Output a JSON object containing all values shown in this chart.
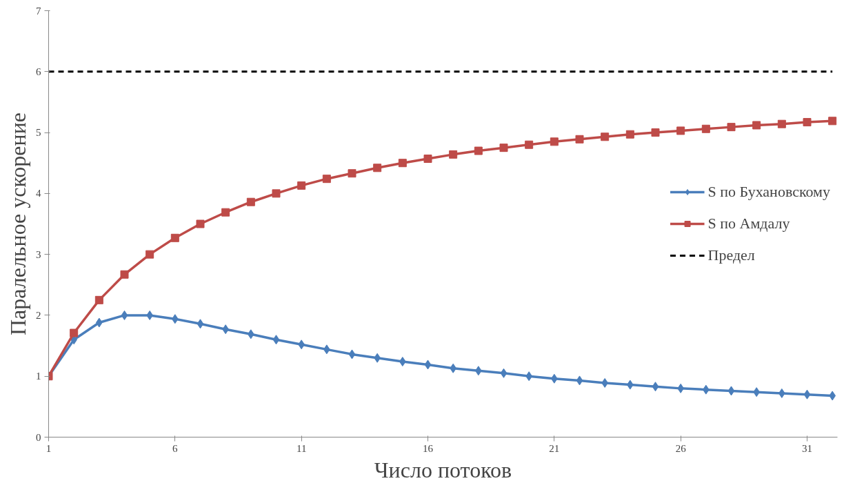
{
  "chart_data": {
    "type": "line",
    "xlabel": "Число потоков",
    "ylabel": "Паралельное ускорение",
    "x": [
      1,
      2,
      3,
      4,
      5,
      6,
      7,
      8,
      9,
      10,
      11,
      12,
      13,
      14,
      15,
      16,
      17,
      18,
      19,
      20,
      21,
      22,
      23,
      24,
      25,
      26,
      27,
      28,
      29,
      30,
      31,
      32
    ],
    "series": [
      {
        "name": "S по Бухановскому",
        "color": "#4a7ebb",
        "marker": "diamond",
        "values": [
          1.0,
          1.6,
          1.88,
          2.0,
          2.0,
          1.94,
          1.86,
          1.77,
          1.69,
          1.6,
          1.52,
          1.44,
          1.36,
          1.3,
          1.24,
          1.19,
          1.13,
          1.09,
          1.05,
          1.0,
          0.96,
          0.93,
          0.89,
          0.86,
          0.83,
          0.8,
          0.78,
          0.76,
          0.74,
          0.72,
          0.7,
          0.68
        ]
      },
      {
        "name": "S по Амдалу",
        "color": "#be4b48",
        "marker": "square",
        "values": [
          1.0,
          1.71,
          2.25,
          2.67,
          3.0,
          3.27,
          3.5,
          3.69,
          3.86,
          4.0,
          4.13,
          4.24,
          4.33,
          4.42,
          4.5,
          4.57,
          4.64,
          4.7,
          4.75,
          4.8,
          4.85,
          4.89,
          4.93,
          4.97,
          5.0,
          5.03,
          5.06,
          5.09,
          5.12,
          5.14,
          5.17,
          5.19
        ]
      },
      {
        "name": "Предел",
        "color": "#000000",
        "marker": "none",
        "line_style": "dashed",
        "values": [
          6,
          6,
          6,
          6,
          6,
          6,
          6,
          6,
          6,
          6,
          6,
          6,
          6,
          6,
          6,
          6,
          6,
          6,
          6,
          6,
          6,
          6,
          6,
          6,
          6,
          6,
          6,
          6,
          6,
          6,
          6,
          6
        ]
      }
    ],
    "xlim": [
      1,
      32.2
    ],
    "xticks": [
      1,
      6,
      11,
      16,
      21,
      26,
      31
    ],
    "ylim": [
      0,
      7
    ],
    "yticks": [
      0,
      1,
      2,
      3,
      4,
      5,
      6,
      7
    ],
    "grid": false,
    "legend": "right",
    "line_style": "solid"
  }
}
